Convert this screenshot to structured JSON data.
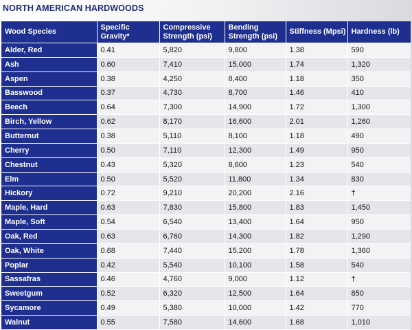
{
  "title": "NORTH AMERICAN HARDWOODS",
  "headers": [
    "Wood Species",
    "Specific Gravity*",
    "Compressive Strength (psi)",
    "Bending Strength (psi)",
    "Stiffness (Mpsi)",
    "Hardness (lb)"
  ],
  "rows": [
    [
      "Alder, Red",
      "0.41",
      "5,820",
      "9,800",
      "1.38",
      "590"
    ],
    [
      "Ash",
      "0.60",
      "7,410",
      "15,000",
      "1.74",
      "1,320"
    ],
    [
      "Aspen",
      "0.38",
      "4,250",
      "8,400",
      "1.18",
      "350"
    ],
    [
      "Basswood",
      "0.37",
      "4,730",
      "8,700",
      "1.46",
      "410"
    ],
    [
      "Beech",
      "0.64",
      "7,300",
      "14,900",
      "1.72",
      "1,300"
    ],
    [
      "Birch, Yellow",
      "0.62",
      "8,170",
      "16,600",
      "2.01",
      "1,260"
    ],
    [
      "Butternut",
      "0.38",
      "5,110",
      "8,100",
      "1.18",
      "490"
    ],
    [
      "Cherry",
      "0.50",
      "7,110",
      "12,300",
      "1.49",
      "950"
    ],
    [
      "Chestnut",
      "0.43",
      "5,320",
      "8,600",
      "1.23",
      "540"
    ],
    [
      "Elm",
      "0.50",
      "5,520",
      "11,800",
      "1.34",
      "830"
    ],
    [
      "Hickory",
      "0.72",
      "9,210",
      "20,200",
      "2.16",
      "†"
    ],
    [
      "Maple, Hard",
      "0.63",
      "7,830",
      "15,800",
      "1.83",
      "1,450"
    ],
    [
      "Maple, Soft",
      "0.54",
      "6,540",
      "13,400",
      "1.64",
      "950"
    ],
    [
      "Oak, Red",
      "0.63",
      "6,760",
      "14,300",
      "1.82",
      "1,290"
    ],
    [
      "Oak, White",
      "0.68",
      "7,440",
      "15,200",
      "1.78",
      "1,360"
    ],
    [
      "Poplar",
      "0.42",
      "5,540",
      "10,100",
      "1.58",
      "540"
    ],
    [
      "Sassafras",
      "0.46",
      "4,760",
      "9,000",
      "1.12",
      "†"
    ],
    [
      "Sweetgum",
      "0.52",
      "6,320",
      "12,500",
      "1.64",
      "850"
    ],
    [
      "Sycamore",
      "0.49",
      "5,380",
      "10,000",
      "1.42",
      "770"
    ],
    [
      "Walnut",
      "0.55",
      "7,580",
      "14,600",
      "1.68",
      "1,010"
    ]
  ]
}
